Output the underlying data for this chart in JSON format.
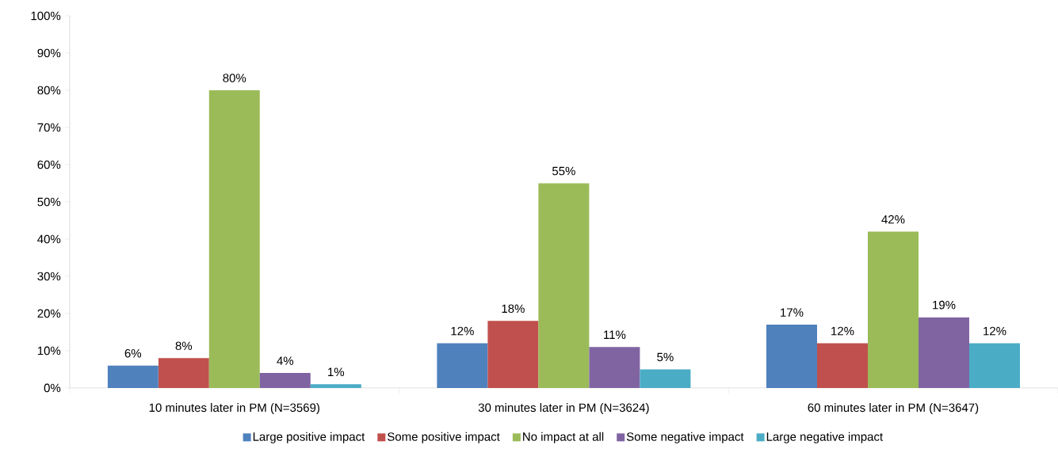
{
  "chart_data": {
    "type": "bar",
    "categories": [
      "10 minutes later in PM (N=3569)",
      "30 minutes later in PM (N=3624)",
      "60 minutes later in PM (N=3647)"
    ],
    "series": [
      {
        "name": "Large positive impact",
        "color": "#4f81bd",
        "values": [
          6,
          12,
          17
        ],
        "value_labels": [
          "6%",
          "12%",
          "17%"
        ]
      },
      {
        "name": "Some positive impact",
        "color": "#c0504d",
        "values": [
          8,
          18,
          12
        ],
        "value_labels": [
          "8%",
          "18%",
          "12%"
        ]
      },
      {
        "name": "No impact at all",
        "color": "#9bbb59",
        "values": [
          80,
          55,
          42
        ],
        "value_labels": [
          "80%",
          "55%",
          "42%"
        ]
      },
      {
        "name": "Some negative impact",
        "color": "#8064a2",
        "values": [
          4,
          11,
          19
        ],
        "value_labels": [
          "4%",
          "11%",
          "19%"
        ]
      },
      {
        "name": "Large negative impact",
        "color": "#4bacc6",
        "values": [
          1,
          5,
          12
        ],
        "value_labels": [
          "1%",
          "5%",
          "12%"
        ]
      }
    ],
    "ylim": [
      0,
      100
    ],
    "yticks": [
      {
        "value": 0,
        "label": "0%"
      },
      {
        "value": 10,
        "label": "10%"
      },
      {
        "value": 20,
        "label": "20%"
      },
      {
        "value": 30,
        "label": "30%"
      },
      {
        "value": 40,
        "label": "40%"
      },
      {
        "value": 50,
        "label": "50%"
      },
      {
        "value": 60,
        "label": "60%"
      },
      {
        "value": 70,
        "label": "70%"
      },
      {
        "value": 80,
        "label": "80%"
      },
      {
        "value": 90,
        "label": "90%"
      },
      {
        "value": 100,
        "label": "100%"
      }
    ],
    "grid": false,
    "legend": "bottom"
  }
}
